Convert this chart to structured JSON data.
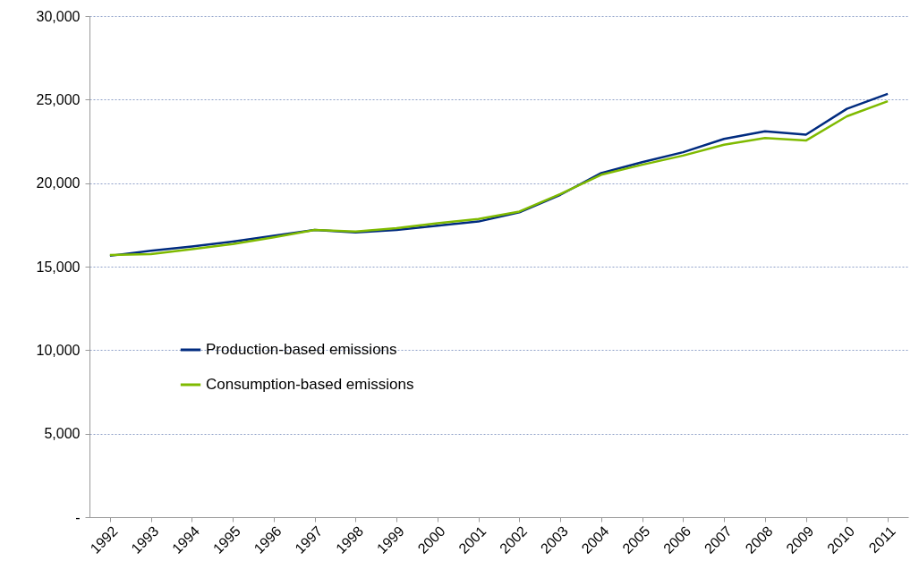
{
  "chart_data": {
    "type": "line",
    "categories": [
      "1992",
      "1993",
      "1994",
      "1995",
      "1996",
      "1997",
      "1998",
      "1999",
      "2000",
      "2001",
      "2002",
      "2003",
      "2004",
      "2005",
      "2006",
      "2007",
      "2008",
      "2009",
      "2010",
      "2011"
    ],
    "series": [
      {
        "name": "Production-based emissions",
        "color": "#002b7f",
        "values": [
          15650,
          15950,
          16200,
          16500,
          16850,
          17200,
          17050,
          17200,
          17450,
          17700,
          18250,
          19300,
          20600,
          21250,
          21850,
          22650,
          23100,
          22900,
          24450,
          25350
        ]
      },
      {
        "name": "Consumption-based emissions",
        "color": "#7fba00",
        "values": [
          15700,
          15750,
          16050,
          16350,
          16750,
          17200,
          17100,
          17300,
          17600,
          17850,
          18300,
          19350,
          20500,
          21100,
          21650,
          22300,
          22700,
          22550,
          24000,
          24900
        ]
      }
    ],
    "ylim": [
      0,
      30000
    ],
    "yticks": [
      {
        "value": 0,
        "label": "-"
      },
      {
        "value": 5000,
        "label": "5,000"
      },
      {
        "value": 10000,
        "label": "10,000"
      },
      {
        "value": 15000,
        "label": "15,000"
      },
      {
        "value": 20000,
        "label": "20,000"
      },
      {
        "value": 25000,
        "label": "25,000"
      },
      {
        "value": 30000,
        "label": "30,000"
      }
    ],
    "grid": "y",
    "legend": "bottom left",
    "marker": "none",
    "line_style": "solid"
  }
}
